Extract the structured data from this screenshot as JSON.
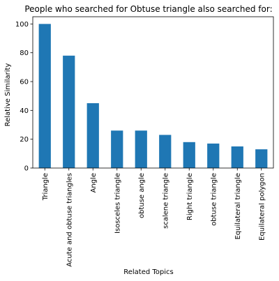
{
  "chart_data": {
    "type": "bar",
    "title": "People who searched for Obtuse triangle also searched for:",
    "xlabel": "Related Topics",
    "ylabel": "Relative Similarity",
    "categories": [
      "Triangle",
      "Acute and obtuse triangles",
      "Angle",
      "Isosceles triangle",
      "obtuse angle",
      "scalene triangle",
      "Right triangle",
      "obtuse triangle",
      "Equilateral triangle",
      "Equilateral polygon"
    ],
    "values": [
      100,
      78,
      45,
      26,
      26,
      23,
      18,
      17,
      15,
      13
    ],
    "ylim": [
      0,
      105
    ],
    "yticks": [
      0,
      20,
      40,
      60,
      80,
      100
    ],
    "grid": false,
    "legend": "none",
    "bar_color": "#1f77b4"
  }
}
